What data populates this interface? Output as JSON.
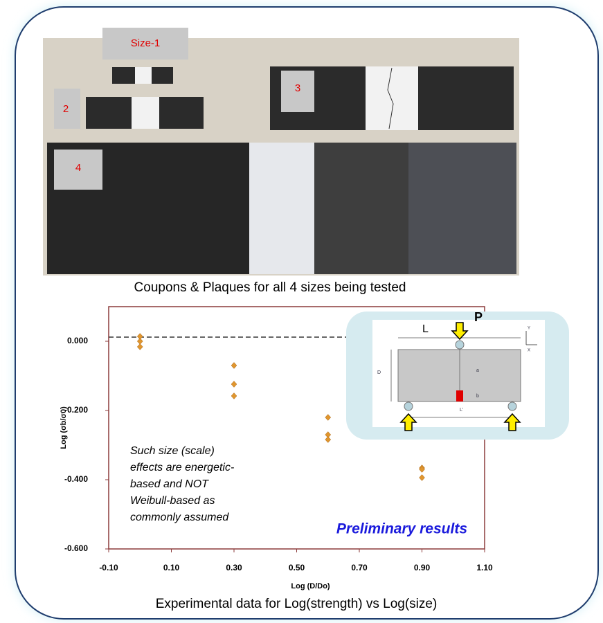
{
  "photo": {
    "labels": [
      "Size-1",
      "2",
      "3",
      "4"
    ],
    "caption": "Coupons & Plaques for all 4 sizes being tested"
  },
  "diagram": {
    "load_label": "P",
    "span_label": "L",
    "depth_label": "D",
    "a_label": "a",
    "b_label": "b",
    "support_label": "L'",
    "y_axis_label": "Y",
    "x_axis_label": "X"
  },
  "chart_data": {
    "type": "scatter",
    "x_label": "Log (D/Do)",
    "y_label": "Log (σb/σ0)",
    "x": [
      0,
      0,
      0,
      0.3,
      0.3,
      0.3,
      0.6,
      0.6,
      0.6,
      0.9,
      0.9,
      0.9
    ],
    "values": [
      0.014,
      0.0,
      -0.016,
      -0.07,
      -0.124,
      -0.158,
      -0.22,
      -0.27,
      -0.284,
      -0.366,
      -0.37,
      -0.394
    ],
    "color": "#e0962e",
    "reference_y": 0.012,
    "xlim": [
      -0.1,
      1.1
    ],
    "ylim": [
      -0.6,
      0.1
    ],
    "xticks": [
      {
        "value": -0.1,
        "label": "-0.10"
      },
      {
        "value": 0.1,
        "label": "0.10"
      },
      {
        "value": 0.3,
        "label": "0.30"
      },
      {
        "value": 0.5,
        "label": "0.50"
      },
      {
        "value": 0.7,
        "label": "0.70"
      },
      {
        "value": 0.9,
        "label": "0.90"
      },
      {
        "value": 1.1,
        "label": "1.10"
      }
    ],
    "yticks": [
      {
        "value": 0,
        "label": "0.000"
      },
      {
        "value": -0.2,
        "label": "-0.200"
      },
      {
        "value": -0.4,
        "label": "-0.400"
      },
      {
        "value": -0.6,
        "label": "-0.600"
      }
    ],
    "annotation_lines": [
      "Such size (scale)",
      "effects are energetic-",
      "based and NOT",
      "Weibull-based as",
      "commonly assumed"
    ],
    "highlight": "Preliminary results",
    "caption": "Experimental data for Log(strength) vs Log(size)"
  }
}
